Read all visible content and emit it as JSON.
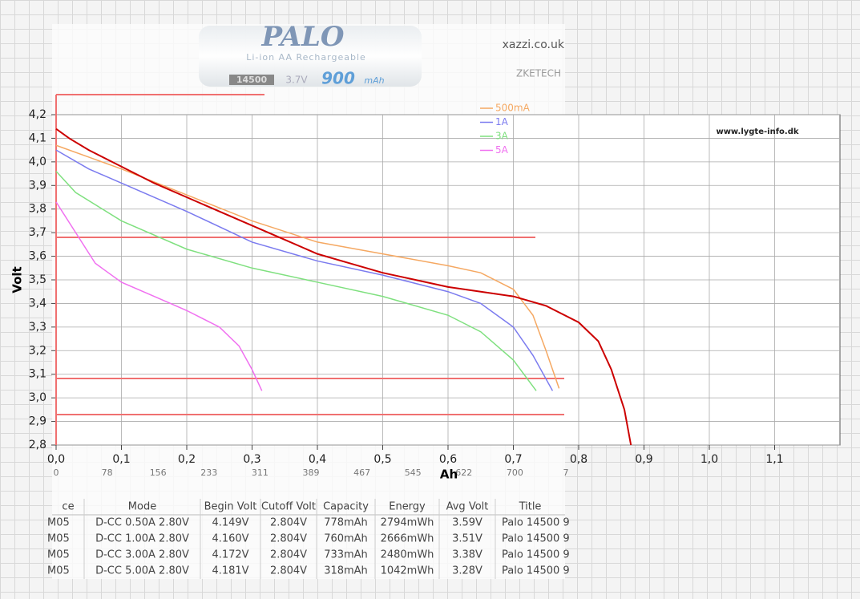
{
  "chart_data": {
    "type": "line",
    "y_label": "Volt",
    "x_label": "Ah",
    "xlim": [
      0,
      1.2
    ],
    "ylim": [
      2.8,
      4.2
    ],
    "xticks": [
      {
        "value": 0,
        "label": "0,0"
      },
      {
        "value": 0.1,
        "label": "0,1"
      },
      {
        "value": 0.2,
        "label": "0,2"
      },
      {
        "value": 0.3,
        "label": "0,3"
      },
      {
        "value": 0.4,
        "label": "0,4"
      },
      {
        "value": 0.5,
        "label": "0,5"
      },
      {
        "value": 0.6,
        "label": "0,6"
      },
      {
        "value": 0.7,
        "label": "0,7"
      },
      {
        "value": 0.8,
        "label": "0,8"
      },
      {
        "value": 0.9,
        "label": "0,9"
      },
      {
        "value": 1.0,
        "label": "1,0"
      },
      {
        "value": 1.1,
        "label": "1,1"
      }
    ],
    "yticks": [
      {
        "value": 2.8,
        "label": "2,8"
      },
      {
        "value": 2.9,
        "label": "2,9"
      },
      {
        "value": 3.0,
        "label": "3,0"
      },
      {
        "value": 3.1,
        "label": "3,1"
      },
      {
        "value": 3.2,
        "label": "3,2"
      },
      {
        "value": 3.3,
        "label": "3,3"
      },
      {
        "value": 3.4,
        "label": "3,4"
      },
      {
        "value": 3.5,
        "label": "3,5"
      },
      {
        "value": 3.6,
        "label": "3,6"
      },
      {
        "value": 3.7,
        "label": "3,7"
      },
      {
        "value": 3.8,
        "label": "3,8"
      },
      {
        "value": 3.9,
        "label": "3,9"
      },
      {
        "value": 4.0,
        "label": "4,0"
      },
      {
        "value": 4.1,
        "label": "4,1"
      },
      {
        "value": 4.2,
        "label": "4,2"
      }
    ],
    "grid": true,
    "series": [
      {
        "name": "500mA",
        "color": "#f5a862",
        "x": [
          0,
          0.05,
          0.1,
          0.2,
          0.3,
          0.4,
          0.5,
          0.6,
          0.65,
          0.7,
          0.73,
          0.75,
          0.77
        ],
        "values": [
          4.07,
          4.02,
          3.97,
          3.86,
          3.75,
          3.66,
          3.61,
          3.56,
          3.53,
          3.46,
          3.35,
          3.2,
          3.04
        ]
      },
      {
        "name": "1A",
        "color": "#7b7bef",
        "x": [
          0,
          0.05,
          0.1,
          0.2,
          0.3,
          0.4,
          0.5,
          0.6,
          0.65,
          0.7,
          0.73,
          0.76
        ],
        "values": [
          4.05,
          3.97,
          3.91,
          3.79,
          3.66,
          3.58,
          3.52,
          3.45,
          3.4,
          3.3,
          3.18,
          3.03
        ]
      },
      {
        "name": "3A",
        "color": "#7fe07f",
        "x": [
          0,
          0.03,
          0.1,
          0.2,
          0.3,
          0.4,
          0.5,
          0.6,
          0.65,
          0.7,
          0.735
        ],
        "values": [
          3.96,
          3.87,
          3.75,
          3.63,
          3.55,
          3.49,
          3.43,
          3.35,
          3.28,
          3.16,
          3.03
        ]
      },
      {
        "name": "5A",
        "color": "#f070f0",
        "x": [
          0,
          0.03,
          0.06,
          0.1,
          0.15,
          0.2,
          0.25,
          0.28,
          0.3,
          0.315
        ],
        "values": [
          3.83,
          3.7,
          3.57,
          3.49,
          3.43,
          3.37,
          3.3,
          3.22,
          3.12,
          3.03
        ]
      },
      {
        "color": "#cc0000",
        "x": [
          0,
          0.02,
          0.05,
          0.1,
          0.15,
          0.2,
          0.25,
          0.3,
          0.35,
          0.4,
          0.45,
          0.5,
          0.55,
          0.6,
          0.65,
          0.7,
          0.75,
          0.8,
          0.83,
          0.85,
          0.87,
          0.88
        ],
        "values": [
          4.14,
          4.1,
          4.05,
          3.98,
          3.91,
          3.85,
          3.79,
          3.73,
          3.67,
          3.61,
          3.57,
          3.53,
          3.5,
          3.47,
          3.45,
          3.43,
          3.39,
          3.32,
          3.24,
          3.12,
          2.95,
          2.8
        ]
      }
    ]
  },
  "logo": {
    "brand": "PALO",
    "subtitle": "Li-ion AA Rechargeable",
    "size": "14500",
    "voltage": "3.7V",
    "capacity": "900",
    "unit": "mAh"
  },
  "sources": {
    "left": "xazzi.co.uk",
    "meter": "ZKETECH",
    "site": "www.lygte-info.dk"
  },
  "overlay_axis": [
    "0",
    "78",
    "156",
    "233",
    "311",
    "389",
    "467",
    "545",
    "622",
    "700",
    "7"
  ],
  "table": {
    "header": [
      "ce",
      "Mode",
      "Begin Volt",
      "Cutoff Volt",
      "Capacity",
      "Energy",
      "Avg Volt",
      "Title"
    ],
    "rows": [
      [
        "M05",
        "D-CC  0.50A  2.80V",
        "4.149V",
        "2.804V",
        "778mAh",
        "2794mWh",
        "3.59V",
        "Palo 14500 9"
      ],
      [
        "M05",
        "D-CC  1.00A  2.80V",
        "4.160V",
        "2.804V",
        "760mAh",
        "2666mWh",
        "3.51V",
        "Palo 14500 9"
      ],
      [
        "M05",
        "D-CC  3.00A  2.80V",
        "4.172V",
        "2.804V",
        "733mAh",
        "2480mWh",
        "3.38V",
        "Palo 14500 9"
      ],
      [
        "M05",
        "D-CC  5.00A  2.80V",
        "4.181V",
        "2.804V",
        "318mAh",
        "1042mWh",
        "3.28V",
        "Palo 14500 9"
      ]
    ]
  }
}
